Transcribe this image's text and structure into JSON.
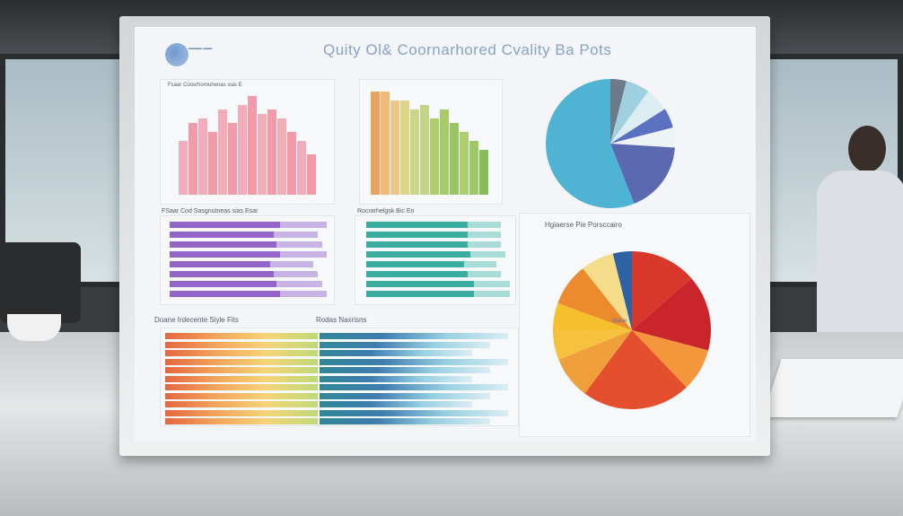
{
  "poster": {
    "title": "Quity Ol& Coornarhored Cvality Ba Pots",
    "panels": {
      "top_left_title": "Fsaar Coosrhornuhenas sias E",
      "purple_bars_title": "FSaar Cod Sasgnutneas sias Esar",
      "teal_bars_title": "Rocrarhelgsk Bic En",
      "pie_title": "Hgiaerse Pie Porsccairo",
      "pie_center_label": "Stoilie",
      "stacked_title": "Doane Irdecente Siyle Fits",
      "stacked_subtitle": "Rodas Naxrisns"
    }
  },
  "colors": {
    "pink": "#ec8a9a",
    "orange_green": "#a8c25a",
    "purple": "#8e5cc4",
    "teal": "#2ea79a",
    "pie_blue": "#4fb4d4"
  }
}
